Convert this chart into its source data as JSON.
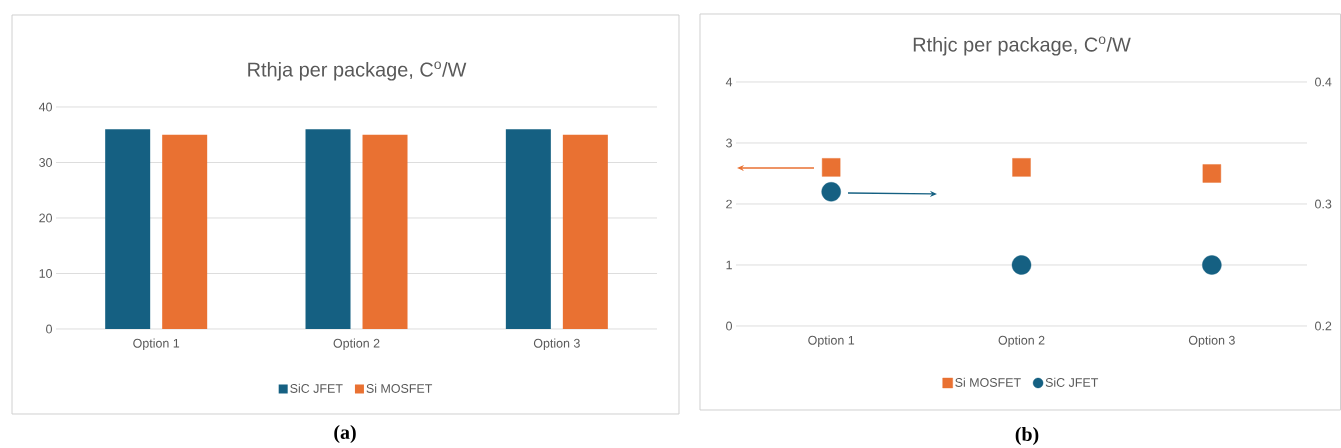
{
  "chart_data": [
    {
      "type": "bar",
      "title": "Rthja per package, C$^{o}$/W",
      "categories": [
        "Option 1",
        "Option 2",
        "Option 3"
      ],
      "series": [
        {
          "name": "SiC JFET",
          "color": "#156082",
          "values": [
            36,
            36,
            36
          ]
        },
        {
          "name": "Si MOSFET",
          "color": "#e97132",
          "values": [
            35,
            35,
            35
          ]
        }
      ],
      "ylim": [
        0,
        40
      ],
      "yticks": [
        0,
        10,
        20,
        30,
        40
      ],
      "grid": "y",
      "legend": "bottom",
      "annotations": [
        "(a)"
      ]
    },
    {
      "type": "scatter",
      "title": "Rthjc per package, C$^{o}$/W",
      "categories": [
        "Option 1",
        "Option 2",
        "Option 3"
      ],
      "series": [
        {
          "name": "Si MOSFET",
          "color": "#e97132",
          "values": [
            2.6,
            2.6,
            2.5
          ],
          "marker": "square"
        },
        {
          "name": "SiC JFET",
          "color": "#156082",
          "values": [
            0.31,
            0.25,
            0.25
          ],
          "marker": "circle",
          "axis": "y2"
        }
      ],
      "ylim": [
        0,
        4
      ],
      "yticks": [
        0,
        1,
        2,
        3,
        4
      ],
      "y2lim": [
        0.2,
        0.4
      ],
      "y2ticks": [
        0.2,
        0.3,
        0.4
      ],
      "grid": "y",
      "legend": "bottom",
      "annotations": [
        "(b)"
      ]
    }
  ]
}
